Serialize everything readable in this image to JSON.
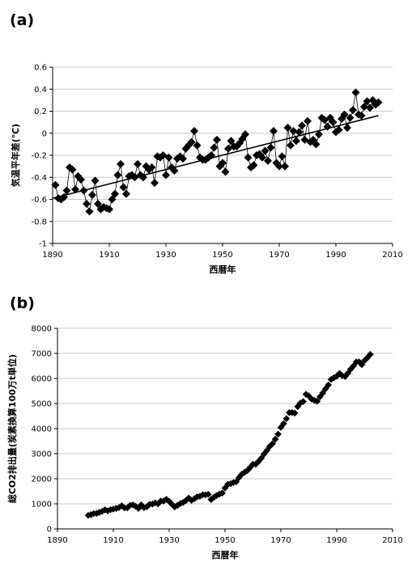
{
  "panels": [
    {
      "label": "(a)",
      "chart_data": {
        "type": "scatter",
        "title": "",
        "xlabel": "西暦年",
        "ylabel": "気温平年差(℃)",
        "xlim": [
          1890,
          2010
        ],
        "ylim": [
          -1,
          0.6
        ],
        "xticks": [
          "1890",
          "1910",
          "1930",
          "1950",
          "1970",
          "1990",
          "2010"
        ],
        "yticks": [
          "0.6",
          "0.4",
          "0.2",
          "0",
          "-0.2",
          "-0.4",
          "-0.6",
          "-0.8",
          "-1"
        ],
        "marker": "diamond",
        "connected": true,
        "trendline": {
          "x": [
            1890,
            2005
          ],
          "y": [
            -0.59,
            0.16
          ]
        },
        "x": [
          1891,
          1892,
          1893,
          1894,
          1895,
          1896,
          1897,
          1898,
          1899,
          1900,
          1901,
          1902,
          1903,
          1904,
          1905,
          1906,
          1907,
          1908,
          1909,
          1910,
          1911,
          1912,
          1913,
          1914,
          1915,
          1916,
          1917,
          1918,
          1919,
          1920,
          1921,
          1922,
          1923,
          1924,
          1925,
          1926,
          1927,
          1928,
          1929,
          1930,
          1931,
          1932,
          1933,
          1934,
          1935,
          1936,
          1937,
          1938,
          1939,
          1940,
          1941,
          1942,
          1943,
          1944,
          1945,
          1946,
          1947,
          1948,
          1949,
          1950,
          1951,
          1952,
          1953,
          1954,
          1955,
          1956,
          1957,
          1958,
          1959,
          1960,
          1961,
          1962,
          1963,
          1964,
          1965,
          1966,
          1967,
          1968,
          1969,
          1970,
          1971,
          1972,
          1973,
          1974,
          1975,
          1976,
          1977,
          1978,
          1979,
          1980,
          1981,
          1982,
          1983,
          1984,
          1985,
          1986,
          1987,
          1988,
          1989,
          1990,
          1991,
          1992,
          1993,
          1994,
          1995,
          1996,
          1997,
          1998,
          1999,
          2000,
          2001,
          2002,
          2003,
          2004,
          2005
        ],
        "y": [
          -0.47,
          -0.59,
          -0.6,
          -0.58,
          -0.52,
          -0.31,
          -0.33,
          -0.51,
          -0.39,
          -0.42,
          -0.52,
          -0.64,
          -0.71,
          -0.56,
          -0.43,
          -0.64,
          -0.69,
          -0.67,
          -0.68,
          -0.69,
          -0.6,
          -0.55,
          -0.38,
          -0.28,
          -0.49,
          -0.55,
          -0.39,
          -0.38,
          -0.4,
          -0.28,
          -0.38,
          -0.4,
          -0.3,
          -0.33,
          -0.31,
          -0.45,
          -0.21,
          -0.22,
          -0.2,
          -0.38,
          -0.22,
          -0.31,
          -0.34,
          -0.23,
          -0.21,
          -0.23,
          -0.14,
          -0.11,
          -0.08,
          0.02,
          -0.11,
          -0.22,
          -0.24,
          -0.24,
          -0.22,
          -0.2,
          -0.13,
          -0.06,
          -0.3,
          -0.27,
          -0.35,
          -0.14,
          -0.07,
          -0.12,
          -0.12,
          -0.09,
          -0.05,
          -0.01,
          -0.22,
          -0.31,
          -0.29,
          -0.2,
          -0.19,
          -0.22,
          -0.16,
          -0.25,
          -0.13,
          0.02,
          -0.27,
          -0.3,
          -0.21,
          -0.3,
          0.05,
          -0.11,
          0.02,
          -0.07,
          0.01,
          0.07,
          -0.06,
          0.11,
          -0.08,
          -0.06,
          -0.1,
          -0.01,
          0.14,
          0.12,
          0.06,
          0.14,
          0.1,
          0.01,
          0.03,
          0.13,
          0.17,
          0.05,
          0.14,
          0.21,
          0.37,
          0.17,
          0.16,
          0.24,
          0.29,
          0.23,
          0.3,
          0.26,
          0.28
        ]
      }
    },
    {
      "label": "(b)",
      "chart_data": {
        "type": "scatter",
        "title": "",
        "xlabel": "西暦年",
        "ylabel": "総CO2排出量(炭素換算100万t単位)",
        "xlim": [
          1890,
          2010
        ],
        "ylim": [
          0,
          8000
        ],
        "xticks": [
          "1890",
          "1910",
          "1930",
          "1950",
          "1970",
          "1990",
          "2010"
        ],
        "yticks": [
          "8000",
          "7000",
          "6000",
          "5000",
          "4000",
          "3000",
          "2000",
          "1000",
          "0"
        ],
        "marker": "diamond",
        "connected": false,
        "x": [
          1901,
          1902,
          1903,
          1904,
          1905,
          1906,
          1907,
          1908,
          1909,
          1910,
          1911,
          1912,
          1913,
          1914,
          1915,
          1916,
          1917,
          1918,
          1919,
          1920,
          1921,
          1922,
          1923,
          1924,
          1925,
          1926,
          1927,
          1928,
          1929,
          1930,
          1931,
          1932,
          1933,
          1934,
          1935,
          1936,
          1937,
          1938,
          1939,
          1940,
          1941,
          1942,
          1943,
          1944,
          1945,
          1946,
          1947,
          1948,
          1949,
          1950,
          1951,
          1952,
          1953,
          1954,
          1955,
          1956,
          1957,
          1958,
          1959,
          1960,
          1961,
          1962,
          1963,
          1964,
          1965,
          1966,
          1967,
          1968,
          1969,
          1970,
          1971,
          1972,
          1973,
          1974,
          1975,
          1976,
          1977,
          1978,
          1979,
          1980,
          1981,
          1982,
          1983,
          1984,
          1985,
          1986,
          1987,
          1988,
          1989,
          1990,
          1991,
          1992,
          1993,
          1994,
          1995,
          1996,
          1997,
          1998,
          1999,
          2000,
          2001,
          2002
        ],
        "y": [
          540,
          570,
          610,
          620,
          660,
          700,
          760,
          720,
          770,
          790,
          820,
          850,
          920,
          840,
          840,
          940,
          960,
          900,
          820,
          960,
          850,
          880,
          980,
          990,
          1040,
          1000,
          1110,
          1110,
          1180,
          1100,
          980,
          880,
          940,
          1010,
          1060,
          1130,
          1230,
          1140,
          1200,
          1280,
          1300,
          1360,
          1360,
          1380,
          1170,
          1260,
          1330,
          1390,
          1430,
          1630,
          1780,
          1800,
          1850,
          1880,
          2050,
          2180,
          2260,
          2330,
          2450,
          2580,
          2580,
          2690,
          2820,
          2990,
          3130,
          3290,
          3400,
          3580,
          3780,
          4050,
          4200,
          4400,
          4640,
          4640,
          4620,
          4880,
          5020,
          5080,
          5370,
          5300,
          5180,
          5130,
          5090,
          5270,
          5420,
          5590,
          5740,
          5960,
          6030,
          6090,
          6200,
          6110,
          6080,
          6210,
          6370,
          6500,
          6660,
          6660,
          6550,
          6720,
          6830,
          6960
        ]
      }
    }
  ]
}
